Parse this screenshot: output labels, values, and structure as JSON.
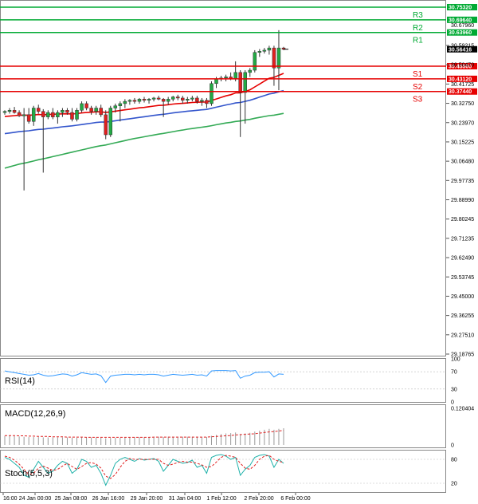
{
  "chart_data": {
    "type": "candlestick",
    "y_axis": {
      "range": [
        29.18765,
        30.7532
      ],
      "ticks": [
        "30.59215",
        "30.50470",
        "30.41725",
        "30.32750",
        "30.23970",
        "30.15225",
        "30.06480",
        "29.97735",
        "29.88990",
        "29.80245",
        "29.71235",
        "29.62490",
        "29.53745",
        "29.45000",
        "29.36255",
        "29.27510",
        "29.18765"
      ]
    },
    "x_axis": {
      "ticks": [
        "16:00",
        "24 Jan 00:00",
        "25 Jan 08:00",
        "26 Jan 16:00",
        "29 Jan 20:00",
        "31 Jan 04:00",
        "1 Feb 12:00",
        "2 Feb 20:00",
        "6 Feb 00:00"
      ]
    },
    "current_price": "30.56416",
    "levels": [
      {
        "name": "R3",
        "value": "30.75320",
        "color": "#00aa33"
      },
      {
        "name": "R2",
        "value": "30.69640",
        "color": "#00aa33"
      },
      {
        "name": "R1",
        "value": "30.63960",
        "color": "#00aa33"
      },
      {
        "name": "S1",
        "value": "30.48800",
        "color": "#e60000"
      },
      {
        "name": "S2",
        "value": "30.43120",
        "color": "#e60000"
      },
      {
        "name": "S3",
        "value": "30.37440",
        "color": "#e60000"
      }
    ],
    "extra_ticks": [
      "30.67960"
    ],
    "candles": [
      {
        "o": 30.28,
        "h": 30.29,
        "l": 30.27,
        "c": 30.285
      },
      {
        "o": 30.285,
        "h": 30.3,
        "l": 30.275,
        "c": 30.29
      },
      {
        "o": 30.29,
        "h": 30.305,
        "l": 30.275,
        "c": 30.28
      },
      {
        "o": 30.28,
        "h": 30.29,
        "l": 30.26,
        "c": 30.265
      },
      {
        "o": 30.265,
        "h": 30.3,
        "l": 29.93,
        "c": 30.27
      },
      {
        "o": 30.27,
        "h": 30.3,
        "l": 30.23,
        "c": 30.24
      },
      {
        "o": 30.24,
        "h": 30.31,
        "l": 30.22,
        "c": 30.3
      },
      {
        "o": 30.3,
        "h": 30.315,
        "l": 30.275,
        "c": 30.285
      },
      {
        "o": 30.285,
        "h": 30.295,
        "l": 30.01,
        "c": 30.26
      },
      {
        "o": 30.26,
        "h": 30.29,
        "l": 30.25,
        "c": 30.28
      },
      {
        "o": 30.28,
        "h": 30.3,
        "l": 30.25,
        "c": 30.26
      },
      {
        "o": 30.26,
        "h": 30.29,
        "l": 30.23,
        "c": 30.28
      },
      {
        "o": 30.28,
        "h": 30.3,
        "l": 30.26,
        "c": 30.29
      },
      {
        "o": 30.29,
        "h": 30.3,
        "l": 30.27,
        "c": 30.28
      },
      {
        "o": 30.28,
        "h": 30.3,
        "l": 30.24,
        "c": 30.25
      },
      {
        "o": 30.25,
        "h": 30.3,
        "l": 30.24,
        "c": 30.29
      },
      {
        "o": 30.29,
        "h": 30.33,
        "l": 30.28,
        "c": 30.32
      },
      {
        "o": 30.32,
        "h": 30.33,
        "l": 30.29,
        "c": 30.3
      },
      {
        "o": 30.3,
        "h": 30.31,
        "l": 30.27,
        "c": 30.285
      },
      {
        "o": 30.285,
        "h": 30.31,
        "l": 30.27,
        "c": 30.3
      },
      {
        "o": 30.3,
        "h": 30.315,
        "l": 30.26,
        "c": 30.27
      },
      {
        "o": 30.27,
        "h": 30.29,
        "l": 30.16,
        "c": 30.18
      },
      {
        "o": 30.18,
        "h": 30.31,
        "l": 30.17,
        "c": 30.3
      },
      {
        "o": 30.3,
        "h": 30.32,
        "l": 30.28,
        "c": 30.31
      },
      {
        "o": 30.31,
        "h": 30.33,
        "l": 30.24,
        "c": 30.32
      },
      {
        "o": 30.32,
        "h": 30.34,
        "l": 30.3,
        "c": 30.33
      },
      {
        "o": 30.33,
        "h": 30.34,
        "l": 30.315,
        "c": 30.335
      },
      {
        "o": 30.335,
        "h": 30.345,
        "l": 30.32,
        "c": 30.33
      },
      {
        "o": 30.33,
        "h": 30.345,
        "l": 30.32,
        "c": 30.34
      },
      {
        "o": 30.34,
        "h": 30.35,
        "l": 30.325,
        "c": 30.335
      },
      {
        "o": 30.335,
        "h": 30.345,
        "l": 30.32,
        "c": 30.34
      },
      {
        "o": 30.34,
        "h": 30.35,
        "l": 30.33,
        "c": 30.345
      },
      {
        "o": 30.345,
        "h": 30.355,
        "l": 30.335,
        "c": 30.34
      },
      {
        "o": 30.34,
        "h": 30.345,
        "l": 30.26,
        "c": 30.33
      },
      {
        "o": 30.33,
        "h": 30.35,
        "l": 30.315,
        "c": 30.34
      },
      {
        "o": 30.34,
        "h": 30.355,
        "l": 30.33,
        "c": 30.35
      },
      {
        "o": 30.35,
        "h": 30.36,
        "l": 30.335,
        "c": 30.345
      },
      {
        "o": 30.345,
        "h": 30.355,
        "l": 30.32,
        "c": 30.335
      },
      {
        "o": 30.335,
        "h": 30.35,
        "l": 30.32,
        "c": 30.34
      },
      {
        "o": 30.34,
        "h": 30.355,
        "l": 30.33,
        "c": 30.345
      },
      {
        "o": 30.345,
        "h": 30.355,
        "l": 30.32,
        "c": 30.33
      },
      {
        "o": 30.33,
        "h": 30.345,
        "l": 30.31,
        "c": 30.335
      },
      {
        "o": 30.335,
        "h": 30.345,
        "l": 30.3,
        "c": 30.32
      },
      {
        "o": 30.32,
        "h": 30.42,
        "l": 30.31,
        "c": 30.41
      },
      {
        "o": 30.41,
        "h": 30.44,
        "l": 30.39,
        "c": 30.43
      },
      {
        "o": 30.43,
        "h": 30.445,
        "l": 30.42,
        "c": 30.435
      },
      {
        "o": 30.435,
        "h": 30.45,
        "l": 30.42,
        "c": 30.44
      },
      {
        "o": 30.44,
        "h": 30.46,
        "l": 30.425,
        "c": 30.43
      },
      {
        "o": 30.43,
        "h": 30.51,
        "l": 30.42,
        "c": 30.46
      },
      {
        "o": 30.46,
        "h": 30.47,
        "l": 30.17,
        "c": 30.37
      },
      {
        "o": 30.37,
        "h": 30.47,
        "l": 30.23,
        "c": 30.46
      },
      {
        "o": 30.46,
        "h": 30.48,
        "l": 30.44,
        "c": 30.47
      },
      {
        "o": 30.47,
        "h": 30.56,
        "l": 30.46,
        "c": 30.55
      },
      {
        "o": 30.55,
        "h": 30.565,
        "l": 30.53,
        "c": 30.555
      },
      {
        "o": 30.555,
        "h": 30.57,
        "l": 30.545,
        "c": 30.56
      },
      {
        "o": 30.56,
        "h": 30.58,
        "l": 30.54,
        "c": 30.57
      },
      {
        "o": 30.57,
        "h": 30.58,
        "l": 30.4,
        "c": 30.48
      },
      {
        "o": 30.48,
        "h": 30.65,
        "l": 30.38,
        "c": 30.57
      },
      {
        "o": 30.57,
        "h": 30.575,
        "l": 30.56,
        "c": 30.564
      }
    ],
    "moving_averages": [
      {
        "color": "#e60000",
        "values": [
          30.262,
          30.264,
          30.266,
          30.268,
          30.268,
          30.268,
          30.269,
          30.271,
          30.27,
          30.271,
          30.272,
          30.273,
          30.274,
          30.274,
          30.274,
          30.275,
          30.278,
          30.28,
          30.281,
          30.283,
          30.283,
          30.28,
          30.283,
          30.286,
          30.289,
          30.292,
          30.295,
          30.298,
          30.301,
          30.303,
          30.306,
          30.309,
          30.312,
          30.313,
          30.315,
          30.318,
          30.32,
          30.321,
          30.323,
          30.325,
          30.326,
          30.327,
          30.327,
          30.334,
          30.341,
          30.348,
          30.355,
          30.36,
          30.368,
          30.368,
          30.375,
          30.382,
          30.395,
          30.408,
          30.421,
          30.434,
          30.438,
          30.447,
          30.456
        ]
      },
      {
        "color": "#3355cc",
        "values": [
          30.185,
          30.188,
          30.191,
          30.194,
          30.196,
          30.198,
          30.201,
          30.204,
          30.205,
          30.208,
          30.21,
          30.213,
          30.216,
          30.218,
          30.22,
          30.223,
          30.226,
          30.229,
          30.232,
          30.235,
          30.237,
          30.237,
          30.24,
          30.243,
          30.246,
          30.249,
          30.252,
          30.255,
          30.258,
          30.261,
          30.264,
          30.267,
          30.27,
          30.272,
          30.275,
          30.278,
          30.281,
          30.283,
          30.286,
          30.288,
          30.29,
          30.292,
          30.294,
          30.299,
          30.304,
          30.309,
          30.314,
          30.318,
          30.323,
          30.325,
          30.33,
          30.335,
          30.342,
          30.349,
          30.356,
          30.363,
          30.367,
          30.373,
          30.378
        ]
      },
      {
        "color": "#33aa55",
        "values": [
          30.03,
          30.036,
          30.042,
          30.048,
          30.052,
          30.057,
          30.062,
          30.068,
          30.072,
          30.077,
          30.082,
          30.087,
          30.092,
          30.097,
          30.102,
          30.107,
          30.112,
          30.117,
          30.122,
          30.127,
          30.131,
          30.134,
          30.139,
          30.144,
          30.149,
          30.154,
          30.159,
          30.163,
          30.167,
          30.171,
          30.175,
          30.179,
          30.183,
          30.186,
          30.19,
          30.194,
          30.198,
          30.201,
          30.205,
          30.208,
          30.211,
          30.214,
          30.217,
          30.221,
          30.225,
          30.229,
          30.233,
          30.236,
          30.24,
          30.242,
          30.246,
          30.249,
          30.254,
          30.258,
          30.262,
          30.266,
          30.268,
          30.272,
          30.276
        ]
      }
    ],
    "indicators": {
      "rsi": {
        "label": "RSI(14)",
        "ticks": [
          "100",
          "70",
          "30",
          "0"
        ],
        "values": [
          72,
          70,
          68,
          66,
          64,
          62,
          63,
          66,
          62,
          60,
          61,
          63,
          65,
          64,
          60,
          63,
          68,
          66,
          64,
          65,
          61,
          45,
          60,
          62,
          63,
          64,
          64,
          63,
          64,
          63,
          64,
          64,
          63,
          60,
          62,
          64,
          63,
          62,
          63,
          64,
          62,
          63,
          60,
          72,
          73,
          73,
          73,
          72,
          73,
          55,
          60,
          62,
          68,
          69,
          69,
          70,
          58,
          65,
          64
        ]
      },
      "macd": {
        "label": "MACD(12,26,9)",
        "ticks": [
          "0.120404",
          "0"
        ],
        "hist": [
          0.03,
          0.03,
          0.029,
          0.028,
          0.027,
          0.026,
          0.026,
          0.026,
          0.025,
          0.025,
          0.025,
          0.025,
          0.025,
          0.025,
          0.024,
          0.024,
          0.025,
          0.025,
          0.025,
          0.025,
          0.024,
          0.022,
          0.023,
          0.024,
          0.024,
          0.025,
          0.025,
          0.026,
          0.026,
          0.026,
          0.026,
          0.027,
          0.027,
          0.026,
          0.027,
          0.027,
          0.027,
          0.027,
          0.027,
          0.027,
          0.027,
          0.026,
          0.026,
          0.03,
          0.033,
          0.036,
          0.038,
          0.039,
          0.041,
          0.036,
          0.038,
          0.04,
          0.044,
          0.047,
          0.05,
          0.053,
          0.05,
          0.053,
          0.055
        ],
        "signal": [
          0.031,
          0.031,
          0.031,
          0.03,
          0.03,
          0.029,
          0.029,
          0.028,
          0.028,
          0.028,
          0.027,
          0.027,
          0.027,
          0.026,
          0.026,
          0.026,
          0.026,
          0.025,
          0.025,
          0.025,
          0.025,
          0.025,
          0.025,
          0.025,
          0.025,
          0.025,
          0.025,
          0.025,
          0.025,
          0.025,
          0.025,
          0.026,
          0.026,
          0.026,
          0.026,
          0.026,
          0.026,
          0.026,
          0.026,
          0.026,
          0.026,
          0.026,
          0.026,
          0.027,
          0.028,
          0.029,
          0.03,
          0.031,
          0.033,
          0.034,
          0.035,
          0.036,
          0.037,
          0.039,
          0.041,
          0.043,
          0.044,
          0.046,
          0.048
        ]
      },
      "stoch": {
        "label": "Stoch(5,5,3)",
        "ticks": [
          "80",
          "20"
        ],
        "k": [
          85,
          80,
          70,
          60,
          40,
          35,
          55,
          75,
          60,
          45,
          50,
          65,
          75,
          70,
          45,
          55,
          80,
          75,
          60,
          65,
          45,
          15,
          40,
          70,
          80,
          85,
          80,
          75,
          82,
          78,
          80,
          82,
          75,
          50,
          65,
          80,
          75,
          70,
          72,
          78,
          60,
          65,
          45,
          85,
          90,
          92,
          88,
          80,
          85,
          40,
          55,
          65,
          85,
          90,
          92,
          88,
          60,
          80,
          70
        ],
        "d": [
          88,
          85,
          78,
          68,
          55,
          42,
          45,
          58,
          63,
          58,
          52,
          55,
          63,
          70,
          62,
          55,
          62,
          70,
          72,
          68,
          58,
          38,
          32,
          42,
          60,
          75,
          82,
          80,
          80,
          80,
          80,
          80,
          80,
          70,
          65,
          68,
          72,
          75,
          73,
          73,
          70,
          66,
          60,
          62,
          73,
          85,
          90,
          88,
          85,
          70,
          58,
          55,
          65,
          80,
          88,
          90,
          80,
          75,
          72
        ]
      }
    }
  }
}
